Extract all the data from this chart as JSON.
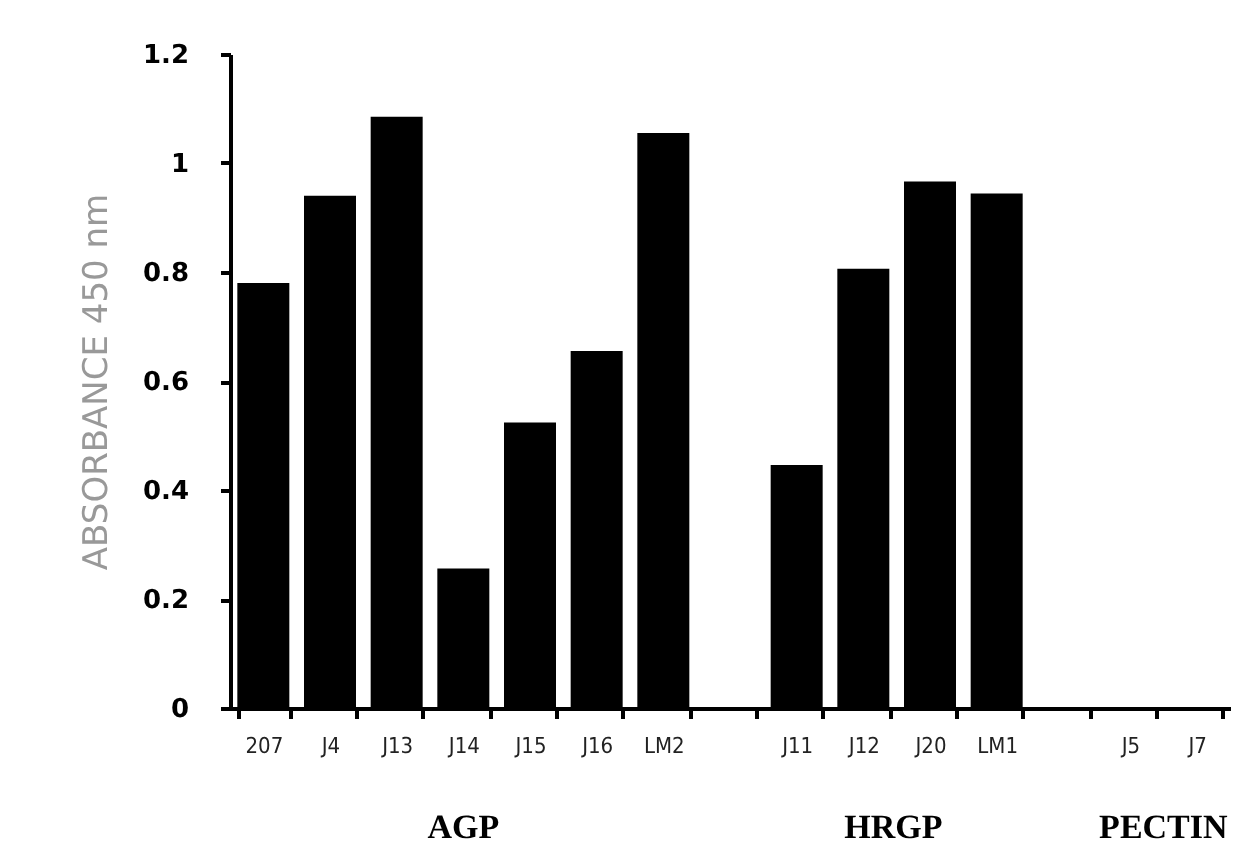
{
  "chart_data": {
    "type": "bar",
    "ylabel": "ABSORBANCE 450 nm",
    "categories": [
      "207",
      "J4",
      "J13",
      "J14",
      "J15",
      "J16",
      "LM2",
      null,
      "J11",
      "J12",
      "J20",
      "LM1",
      null,
      "J5",
      "J7"
    ],
    "values": [
      0.78,
      0.94,
      1.085,
      0.256,
      0.524,
      0.655,
      1.055,
      null,
      0.446,
      0.806,
      0.966,
      0.944,
      null,
      0,
      0
    ],
    "color": "#000000",
    "ylim": [
      0,
      1.2
    ],
    "yticks": [
      0,
      0.2,
      0.4,
      0.6,
      0.8,
      1,
      1.2
    ],
    "grid": false,
    "annotations": [
      "AGP",
      "HRGP",
      "PECTIN"
    ]
  }
}
